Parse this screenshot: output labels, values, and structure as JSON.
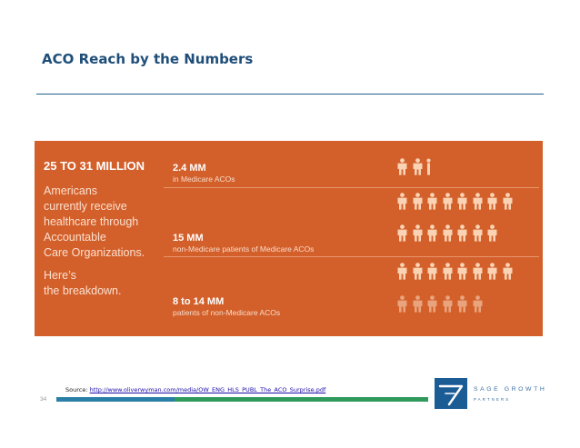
{
  "slide": {
    "title": "ACO Reach by the Numbers",
    "page_number": "34"
  },
  "panel": {
    "headline": "25 TO 31 MILLION",
    "description_lines": [
      "Americans",
      "currently receive",
      "healthcare through",
      "Accountable",
      "Care Organizations."
    ],
    "breakdown_lines": [
      "Here’s",
      "the breakdown."
    ],
    "background_color": "#d35f2a",
    "stats": [
      {
        "value": "2.4 MM",
        "label": "in Medicare ACOs",
        "icons_full": 2,
        "icons_partial": 1,
        "icons_faded": 0
      },
      {
        "value": "15 MM",
        "label": "non-Medicare patients of Medicare ACOs",
        "icons_full": 15,
        "icons_partial": 0,
        "icons_faded": 0
      },
      {
        "value": "8 to 14 MM",
        "label": "patients of non-Medicare ACOs",
        "icons_full": 8,
        "icons_partial": 0,
        "icons_faded": 6
      }
    ],
    "icon": "person-icon"
  },
  "source": {
    "prefix": "Source: ",
    "link_text": "http://www.oliverwyman.com/media/OW_ENG_HLS_PUBL_The_ACO_Surprise.pdf"
  },
  "logo": {
    "line1": "SAGE GROWTH",
    "line2": "PARTNERS"
  }
}
